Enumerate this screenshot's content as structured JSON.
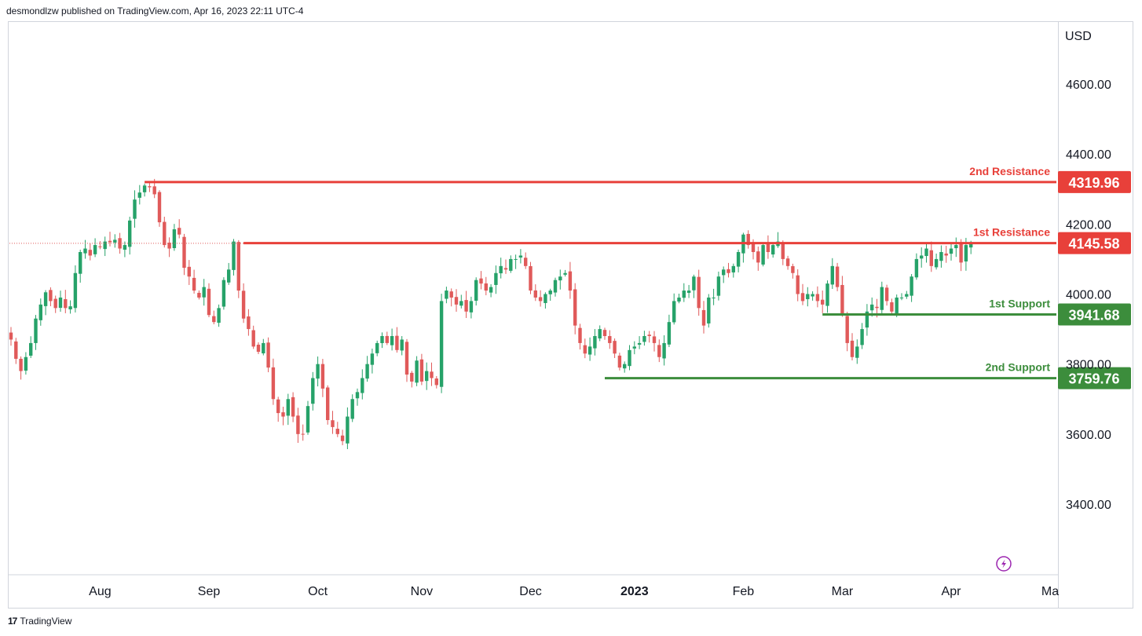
{
  "header": {
    "published_by": "desmondlzw published on TradingView.com, Apr 16, 2023 22:11 UTC-4"
  },
  "footer": {
    "logo_icon": "tradingview-logo-icon",
    "brand": "TradingView"
  },
  "colors": {
    "up": "#26a269",
    "down": "#e05a5a",
    "resistance": "#e8403a",
    "support": "#3c8d3c",
    "grid_text": "#131722",
    "axis_border": "#d1d4dc",
    "lightning": "#9c27b0"
  },
  "chart_data": {
    "type": "candlestick",
    "currency_label": "USD",
    "y_ticks": [
      {
        "value": 4600,
        "label": "4600.00"
      },
      {
        "value": 4400,
        "label": "4400.00"
      },
      {
        "value": 4200,
        "label": "4200.00"
      },
      {
        "value": 4000,
        "label": "4000.00"
      },
      {
        "value": 3800,
        "label": "3800.00"
      },
      {
        "value": 3600,
        "label": "3600.00"
      },
      {
        "value": 3400,
        "label": "3400.00"
      }
    ],
    "x_ticks": [
      {
        "label": "Aug",
        "bold": false,
        "index": 18
      },
      {
        "label": "Sep",
        "bold": false,
        "index": 40
      },
      {
        "label": "Oct",
        "bold": false,
        "index": 62
      },
      {
        "label": "Nov",
        "bold": false,
        "index": 83
      },
      {
        "label": "Dec",
        "bold": false,
        "index": 105
      },
      {
        "label": "2023",
        "bold": true,
        "index": 126
      },
      {
        "label": "Feb",
        "bold": false,
        "index": 148
      },
      {
        "label": "Mar",
        "bold": false,
        "index": 168
      },
      {
        "label": "Apr",
        "bold": false,
        "index": 190
      },
      {
        "label": "Ma",
        "bold": false,
        "index": 210
      }
    ],
    "levels": [
      {
        "name": "2nd Resistance",
        "value": 4319.96,
        "label": "4319.96",
        "kind": "resistance",
        "start_index": 27
      },
      {
        "name": "1st Resistance",
        "value": 4145.58,
        "label": "4145.58",
        "kind": "resistance",
        "start_index": 47
      },
      {
        "name": "1st Support",
        "value": 3941.68,
        "label": "3941.68",
        "kind": "support",
        "start_index": 164
      },
      {
        "name": "2nd Support",
        "value": 3759.76,
        "label": "3759.76",
        "kind": "support",
        "start_index": 120
      }
    ],
    "close_path": [
      3870,
      3815,
      3780,
      3820,
      3860,
      3930,
      3970,
      4005,
      3980,
      3960,
      3990,
      3960,
      3965,
      4060,
      4120,
      4130,
      4110,
      4140,
      4135,
      4150,
      4148,
      4155,
      4130,
      4140,
      4210,
      4270,
      4290,
      4310,
      4305,
      4285,
      4205,
      4140,
      4130,
      4185,
      4170,
      4075,
      4050,
      4010,
      3990,
      4020,
      3940,
      3920,
      3960,
      4040,
      4070,
      4150,
      4010,
      3930,
      3900,
      3850,
      3835,
      3860,
      3790,
      3700,
      3660,
      3650,
      3700,
      3650,
      3600,
      3600,
      3680,
      3760,
      3800,
      3730,
      3640,
      3620,
      3600,
      3580,
      3650,
      3700,
      3720,
      3760,
      3800,
      3830,
      3860,
      3880,
      3860,
      3880,
      3840,
      3870,
      3770,
      3750,
      3810,
      3750,
      3780,
      3760,
      3740,
      3980,
      4010,
      3990,
      3970,
      3980,
      3950,
      3980,
      4040,
      4030,
      4010,
      4020,
      4060,
      4080,
      4070,
      4100,
      4100,
      4110,
      4080,
      4010,
      3990,
      3980,
      4000,
      4010,
      4040,
      4050,
      4060,
      4010,
      3910,
      3860,
      3830,
      3850,
      3880,
      3900,
      3880,
      3860,
      3830,
      3790,
      3800,
      3840,
      3850,
      3860,
      3880,
      3880,
      3860,
      3820,
      3860,
      3920,
      3980,
      3990,
      4010,
      4010,
      4050,
      3960,
      3910,
      3990,
      3990,
      4050,
      4070,
      4060,
      4080,
      4120,
      4170,
      4140,
      4120,
      4090,
      4140,
      4120,
      4140,
      4150,
      4100,
      4080,
      4060,
      4000,
      3980,
      4000,
      4000,
      3980,
      3970,
      4030,
      4080,
      4020,
      3940,
      3860,
      3820,
      3850,
      3900,
      3950,
      3970,
      3960,
      4020,
      3980,
      3950,
      3990,
      3990,
      4000,
      4050,
      4100,
      4110,
      4130,
      4080,
      4100,
      4120,
      4110,
      4130,
      4140,
      4090,
      4140,
      4145
    ]
  }
}
